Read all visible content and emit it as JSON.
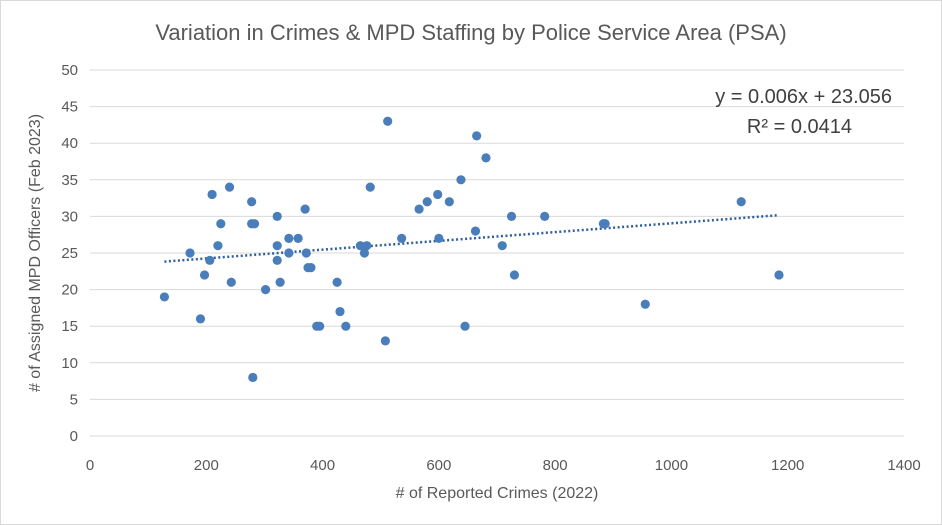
{
  "chart_data": {
    "type": "scatter",
    "title": "Variation in Crimes & MPD Staffing by Police Service Area (PSA)",
    "xlabel": "# of Reported Crimes (2022)",
    "ylabel": "# of Assigned MPD Officers (Feb 2023)",
    "xlim": [
      0,
      1400
    ],
    "ylim": [
      0,
      50
    ],
    "x_ticks": [
      "0",
      "200",
      "400",
      "600",
      "800",
      "1000",
      "1200",
      "1400"
    ],
    "y_ticks": [
      "0",
      "5",
      "10",
      "15",
      "20",
      "25",
      "30",
      "35",
      "40",
      "45",
      "50"
    ],
    "grid": "horizontal",
    "legend": "none",
    "point_color": "#4a7ebb",
    "trendline": {
      "type": "linear",
      "slope": 0.006,
      "intercept": 23.056,
      "x_range": [
        128,
        1182
      ],
      "color": "#2e5f9a",
      "equation_label": "y = 0.006x + 23.056",
      "r2_label": "R² = 0.0414"
    },
    "points": [
      [
        128,
        19
      ],
      [
        172,
        25
      ],
      [
        190,
        16
      ],
      [
        197,
        22
      ],
      [
        206,
        24
      ],
      [
        210,
        33
      ],
      [
        220,
        26
      ],
      [
        225,
        29
      ],
      [
        240,
        34
      ],
      [
        243,
        21
      ],
      [
        278,
        32
      ],
      [
        278,
        29
      ],
      [
        283,
        29
      ],
      [
        280,
        8
      ],
      [
        302,
        20
      ],
      [
        322,
        30
      ],
      [
        322,
        26
      ],
      [
        322,
        24
      ],
      [
        327,
        21
      ],
      [
        342,
        27
      ],
      [
        342,
        25
      ],
      [
        358,
        27
      ],
      [
        370,
        31
      ],
      [
        372,
        25
      ],
      [
        375,
        23
      ],
      [
        380,
        23
      ],
      [
        390,
        15
      ],
      [
        395,
        15
      ],
      [
        425,
        21
      ],
      [
        430,
        17
      ],
      [
        440,
        15
      ],
      [
        465,
        26
      ],
      [
        472,
        25
      ],
      [
        476,
        26
      ],
      [
        482,
        34
      ],
      [
        508,
        13
      ],
      [
        512,
        43
      ],
      [
        536,
        27
      ],
      [
        566,
        31
      ],
      [
        580,
        32
      ],
      [
        598,
        33
      ],
      [
        600,
        27
      ],
      [
        618,
        32
      ],
      [
        638,
        35
      ],
      [
        645,
        15
      ],
      [
        663,
        28
      ],
      [
        665,
        41
      ],
      [
        681,
        38
      ],
      [
        709,
        26
      ],
      [
        725,
        30
      ],
      [
        730,
        22
      ],
      [
        782,
        30
      ],
      [
        883,
        29
      ],
      [
        886,
        29
      ],
      [
        955,
        18
      ],
      [
        1120,
        32
      ],
      [
        1185,
        22
      ]
    ]
  }
}
